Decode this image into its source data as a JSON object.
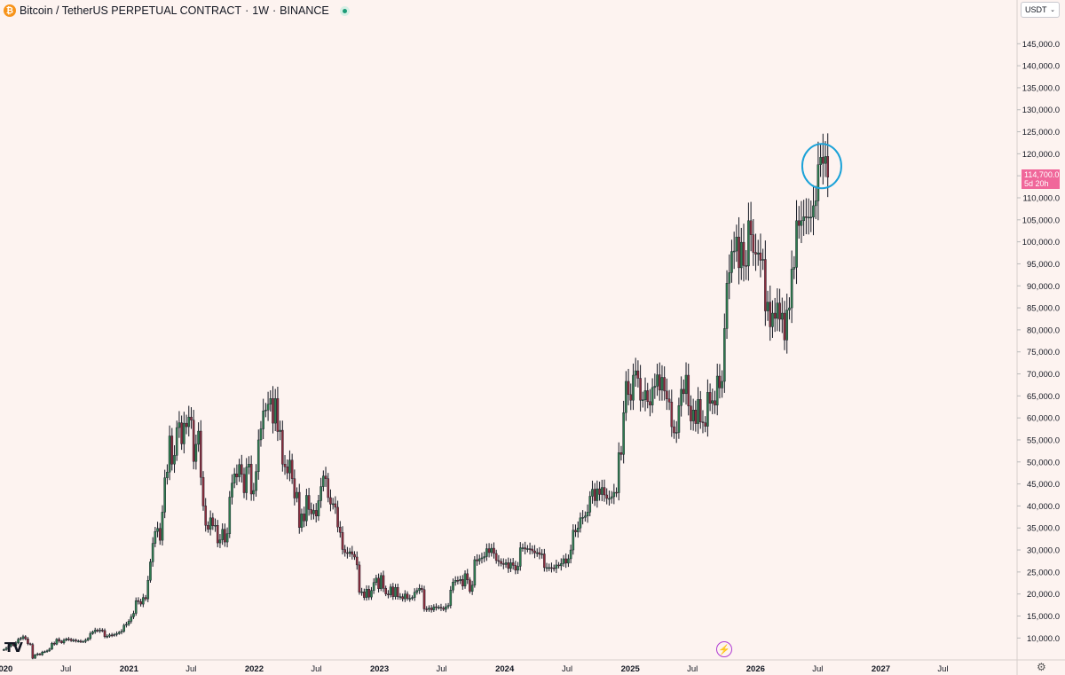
{
  "header": {
    "symbol": "Bitcoin / TetherUS PERPETUAL CONTRACT",
    "sep1": "·",
    "interval": "1W",
    "sep2": "·",
    "exchange": "BINANCE",
    "coin_icon": "bitcoin-icon",
    "status_icon": "market-open-dot-icon"
  },
  "currency_selector": {
    "label": "USDT",
    "icon": "chevron-down-icon"
  },
  "price_label": {
    "price": "114,700.0",
    "countdown": "5d 20h",
    "color": "#f0679a"
  },
  "branding": {
    "logo": "TV",
    "logo_icon": "tradingview-logo-icon"
  },
  "bolt_icon": "lightning-icon",
  "settings_icon": "gear-icon",
  "colors": {
    "up": "#2f7a4f",
    "down": "#8a2e3e",
    "annotation": "#1ca2d8",
    "background": "#fdf3f0"
  },
  "chart_data": {
    "type": "candlestick",
    "interval": "1W",
    "x_range": [
      "2019-12-30",
      "2027-11-01"
    ],
    "ylim": [
      4000,
      150000
    ],
    "y_ticks": [
      10000,
      15000,
      20000,
      25000,
      30000,
      35000,
      40000,
      45000,
      50000,
      55000,
      60000,
      65000,
      70000,
      75000,
      80000,
      85000,
      90000,
      95000,
      100000,
      105000,
      110000,
      115000,
      120000,
      125000,
      130000,
      135000,
      140000,
      145000
    ],
    "y_tick_labels": [
      "10,000.0",
      "15,000.0",
      "20,000.0",
      "25,000.0",
      "30,000.0",
      "35,000.0",
      "40,000.0",
      "45,000.0",
      "50,000.0",
      "55,000.0",
      "60,000.0",
      "65,000.0",
      "70,000.0",
      "75,000.0",
      "80,000.0",
      "85,000.0",
      "90,000.0",
      "95,000.0",
      "100,000.0",
      "105,000.0",
      "110,000.0",
      "115,000.0",
      "120,000.0",
      "125,000.0",
      "130,000.0",
      "135,000.0",
      "140,000.0",
      "145,000.0"
    ],
    "x_ticks": [
      {
        "date": "2020-01-01",
        "label": "2020",
        "bold": true
      },
      {
        "date": "2020-07-01",
        "label": "Jul",
        "bold": false
      },
      {
        "date": "2021-01-01",
        "label": "2021",
        "bold": true
      },
      {
        "date": "2021-07-01",
        "label": "Jul",
        "bold": false
      },
      {
        "date": "2022-01-01",
        "label": "2022",
        "bold": true
      },
      {
        "date": "2022-07-01",
        "label": "Jul",
        "bold": false
      },
      {
        "date": "2023-01-01",
        "label": "2023",
        "bold": true
      },
      {
        "date": "2023-07-01",
        "label": "Jul",
        "bold": false
      },
      {
        "date": "2024-01-01",
        "label": "2024",
        "bold": true
      },
      {
        "date": "2024-07-01",
        "label": "Jul",
        "bold": false
      },
      {
        "date": "2025-01-01",
        "label": "2025",
        "bold": true
      },
      {
        "date": "2025-07-01",
        "label": "Jul",
        "bold": false
      },
      {
        "date": "2026-01-01",
        "label": "2026",
        "bold": true
      },
      {
        "date": "2026-07-01",
        "label": "Jul",
        "bold": false
      },
      {
        "date": "2027-01-01",
        "label": "2027",
        "bold": true
      },
      {
        "date": "2027-07-01",
        "label": "Jul",
        "bold": false
      }
    ],
    "first_candle": "2019-12-30",
    "closes": [
      7400,
      7700,
      8200,
      8600,
      8300,
      8900,
      9700,
      9900,
      10300,
      9800,
      8700,
      8500,
      5400,
      6200,
      6400,
      6200,
      6800,
      6900,
      7100,
      7500,
      8800,
      8600,
      9700,
      9300,
      8900,
      9500,
      9800,
      9700,
      9400,
      9500,
      9300,
      9300,
      9200,
      9200,
      9500,
      9900,
      11000,
      11400,
      11800,
      11600,
      11800,
      11700,
      10300,
      10400,
      10700,
      10600,
      10800,
      11000,
      11300,
      11500,
      12900,
      13100,
      13800,
      14800,
      15600,
      18500,
      18300,
      17700,
      19200,
      18900,
      23100,
      27300,
      31500,
      34200,
      34900,
      32200,
      38600,
      46400,
      47700,
      55900,
      49500,
      51500,
      57800,
      58900,
      54100,
      58800,
      58000,
      60200,
      59500,
      50100,
      54000,
      57000,
      46500,
      40000,
      35600,
      34700,
      37300,
      35500,
      35600,
      31600,
      32300,
      34700,
      31800,
      33700,
      42000,
      45200,
      47300,
      46600,
      49400,
      47200,
      43000,
      48800,
      49500,
      42700,
      43500,
      47800,
      55000,
      57500,
      61600,
      61800,
      63100,
      64400,
      58800,
      64400,
      56900,
      57200,
      49500,
      48900,
      47500,
      50400,
      46200,
      41800,
      43100,
      35100,
      38200,
      36600,
      42400,
      39200,
      38200,
      39000,
      37700,
      41200,
      44400,
      46800,
      46200,
      41900,
      40400,
      40500,
      39700,
      35200,
      34000,
      30100,
      29400,
      29200,
      29600,
      29000,
      28400,
      26600,
      20400,
      20500,
      19200,
      21100,
      19300,
      20800,
      22600,
      23600,
      21200,
      24200,
      21300,
      20000,
      19800,
      21600,
      19400,
      21500,
      19400,
      19400,
      18900,
      20000,
      19000,
      19000,
      19200,
      20400,
      20800,
      21300,
      21000,
      16600,
      16500,
      16800,
      16400,
      17100,
      16900,
      17000,
      16800,
      16500,
      17100,
      17400,
      20900,
      22700,
      23100,
      23000,
      23300,
      21800,
      24600,
      23200,
      20600,
      22000,
      27800,
      27500,
      28000,
      28200,
      28500,
      30300,
      29400,
      30400,
      29200,
      27600,
      27400,
      26900,
      26700,
      27100,
      25800,
      27100,
      26500,
      25400,
      26300,
      30500,
      30500,
      30200,
      30300,
      30200,
      29800,
      29300,
      29400,
      29000,
      29100,
      26000,
      26000,
      26000,
      25900,
      25800,
      26600,
      26400,
      26900,
      28000,
      27000,
      28000,
      30000,
      34500,
      34100,
      35000,
      37300,
      37400,
      37700,
      38600,
      42200,
      43800,
      41200,
      43900,
      42600,
      44200,
      42500,
      41700,
      41700,
      42100,
      43100,
      43000,
      52100,
      51700,
      61200,
      68300,
      65300,
      64000,
      69700,
      70700,
      69000,
      64000,
      64100,
      66200,
      63700,
      62900,
      66900,
      67200,
      69800,
      66300,
      69200,
      66100,
      64300,
      63600,
      58000,
      56600,
      56700,
      62800,
      66500,
      65500,
      69700,
      62700,
      59300,
      61800,
      58700,
      64200,
      59100,
      58900,
      58100,
      65800,
      63300,
      63900,
      62900,
      69500,
      66800,
      68300,
      80300,
      90600,
      93000,
      97800,
      97900,
      101100,
      94100,
      99900,
      94600,
      94500,
      104800,
      101600,
      97600,
      97200,
      97500,
      95800,
      96000,
      84300,
      86300,
      80700,
      83800,
      82600,
      86100,
      82400,
      83800,
      77700,
      84500,
      85000,
      93800,
      94200,
      104800,
      103700,
      104800,
      105700,
      105500,
      105600,
      105600,
      108200,
      109300,
      117500,
      119200,
      117800,
      119400,
      114700
    ],
    "annotation": {
      "type": "ellipse",
      "note": "circled recent top",
      "color": "#1ca2d8"
    }
  }
}
